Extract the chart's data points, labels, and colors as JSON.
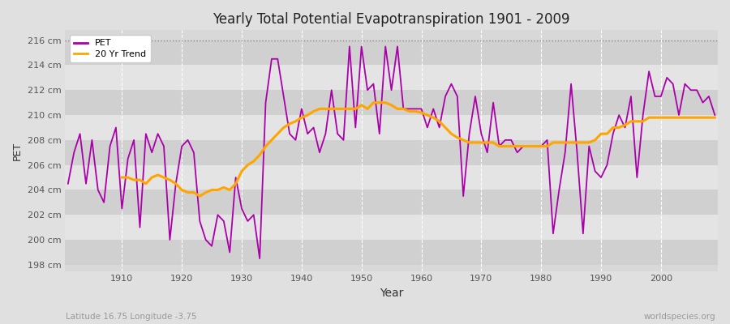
{
  "title": "Yearly Total Potential Evapotranspiration 1901 - 2009",
  "xlabel": "Year",
  "ylabel": "PET",
  "footnote_left": "Latitude 16.75 Longitude -3.75",
  "footnote_right": "worldspecies.org",
  "ylim": [
    197.5,
    216.8
  ],
  "yticks": [
    198,
    200,
    202,
    204,
    206,
    208,
    210,
    212,
    214,
    216
  ],
  "ytick_labels": [
    "198 cm",
    "200 cm",
    "202 cm",
    "204 cm",
    "206 cm",
    "208 cm",
    "210 cm",
    "212 cm",
    "214 cm",
    "216 cm"
  ],
  "hline_y": 216,
  "pet_color": "#aa00aa",
  "trend_color": "#ffa500",
  "background_color": "#e0e0e0",
  "plot_bg_color": "#d8d8d8",
  "band_color_light": "#e4e4e4",
  "band_color_dark": "#d0d0d0",
  "legend_labels": [
    "PET",
    "20 Yr Trend"
  ],
  "xlim": [
    1900.5,
    2009.5
  ],
  "xticks": [
    1910,
    1920,
    1930,
    1940,
    1950,
    1960,
    1970,
    1980,
    1990,
    2000
  ],
  "years": [
    1901,
    1902,
    1903,
    1904,
    1905,
    1906,
    1907,
    1908,
    1909,
    1910,
    1911,
    1912,
    1913,
    1914,
    1915,
    1916,
    1917,
    1918,
    1919,
    1920,
    1921,
    1922,
    1923,
    1924,
    1925,
    1926,
    1927,
    1928,
    1929,
    1930,
    1931,
    1932,
    1933,
    1934,
    1935,
    1936,
    1937,
    1938,
    1939,
    1940,
    1941,
    1942,
    1943,
    1944,
    1945,
    1946,
    1947,
    1948,
    1949,
    1950,
    1951,
    1952,
    1953,
    1954,
    1955,
    1956,
    1957,
    1958,
    1959,
    1960,
    1961,
    1962,
    1963,
    1964,
    1965,
    1966,
    1967,
    1968,
    1969,
    1970,
    1971,
    1972,
    1973,
    1974,
    1975,
    1976,
    1977,
    1978,
    1979,
    1980,
    1981,
    1982,
    1983,
    1984,
    1985,
    1986,
    1987,
    1988,
    1989,
    1990,
    1991,
    1992,
    1993,
    1994,
    1995,
    1996,
    1997,
    1998,
    1999,
    2000,
    2001,
    2002,
    2003,
    2004,
    2005,
    2006,
    2007,
    2008,
    2009
  ],
  "pet_values": [
    204.5,
    207.0,
    208.5,
    204.5,
    208.0,
    204.0,
    203.0,
    207.5,
    209.0,
    202.5,
    206.5,
    208.0,
    201.0,
    208.5,
    207.0,
    208.5,
    207.5,
    200.0,
    204.5,
    207.5,
    208.0,
    207.0,
    201.5,
    200.0,
    199.5,
    202.0,
    201.5,
    199.0,
    205.0,
    202.5,
    201.5,
    202.0,
    198.5,
    211.0,
    214.5,
    214.5,
    211.5,
    208.5,
    208.0,
    210.5,
    208.5,
    209.0,
    207.0,
    208.5,
    212.0,
    208.5,
    208.0,
    215.5,
    209.0,
    215.5,
    212.0,
    212.5,
    208.5,
    215.5,
    212.0,
    215.5,
    210.5,
    210.5,
    210.5,
    210.5,
    209.0,
    210.5,
    209.0,
    211.5,
    212.5,
    211.5,
    203.5,
    208.5,
    211.5,
    208.5,
    207.0,
    211.0,
    207.5,
    208.0,
    208.0,
    207.0,
    207.5,
    207.5,
    207.5,
    207.5,
    208.0,
    200.5,
    204.0,
    207.0,
    212.5,
    207.0,
    200.5,
    207.5,
    205.5,
    205.0,
    206.0,
    208.5,
    210.0,
    209.0,
    211.5,
    205.0,
    210.0,
    213.5,
    211.5,
    211.5,
    213.0,
    212.5,
    210.0,
    212.5,
    212.0,
    212.0,
    211.0,
    211.5,
    210.0
  ],
  "trend_values": [
    null,
    null,
    null,
    null,
    null,
    null,
    null,
    null,
    null,
    205.0,
    205.0,
    204.8,
    204.8,
    204.5,
    205.0,
    205.2,
    205.0,
    204.8,
    204.5,
    204.0,
    203.8,
    203.8,
    203.5,
    203.8,
    204.0,
    204.0,
    204.2,
    204.0,
    204.5,
    205.5,
    206.0,
    206.3,
    206.8,
    207.5,
    208.0,
    208.5,
    209.0,
    209.3,
    209.5,
    209.8,
    210.0,
    210.3,
    210.5,
    210.5,
    210.5,
    210.5,
    210.5,
    210.5,
    210.5,
    210.8,
    210.5,
    211.0,
    211.0,
    211.0,
    210.8,
    210.5,
    210.5,
    210.3,
    210.3,
    210.2,
    210.0,
    209.8,
    209.5,
    209.0,
    208.5,
    208.2,
    208.0,
    207.8,
    207.8,
    207.8,
    207.8,
    207.8,
    207.5,
    207.5,
    207.5,
    207.5,
    207.5,
    207.5,
    207.5,
    207.5,
    207.5,
    207.8,
    207.8,
    207.8,
    207.8,
    207.8,
    207.8,
    207.8,
    208.0,
    208.5,
    208.5,
    209.0,
    209.0,
    209.2,
    209.5,
    209.5,
    209.5,
    209.8,
    209.8,
    209.8,
    209.8,
    209.8,
    209.8,
    209.8,
    209.8,
    209.8,
    209.8,
    209.8,
    209.8
  ]
}
